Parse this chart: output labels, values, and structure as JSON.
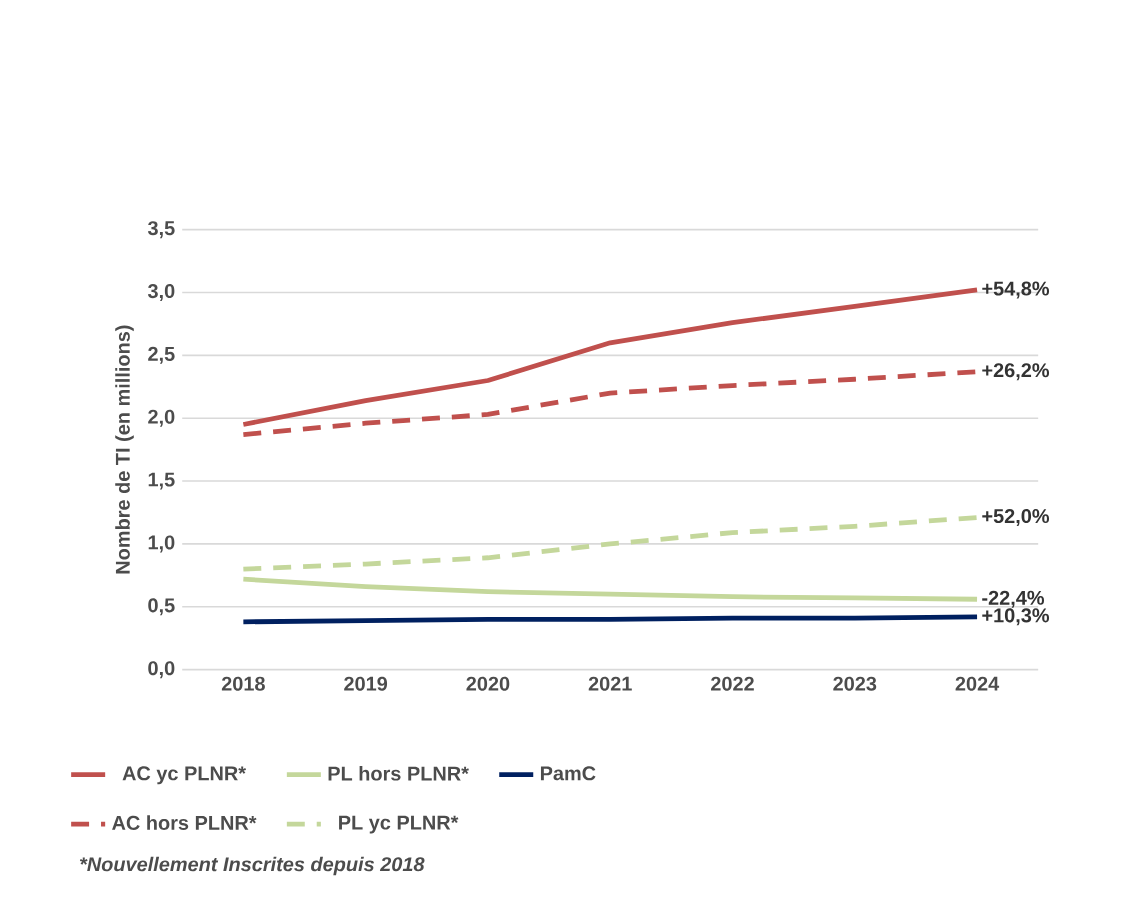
{
  "chart_data": {
    "type": "line",
    "ylabel": "Nombre de TI (en millions)",
    "categories": [
      "2018",
      "2019",
      "2020",
      "2021",
      "2022",
      "2023",
      "2024"
    ],
    "ylim": [
      0,
      3.5
    ],
    "yticks": [
      {
        "value": 0,
        "label": "0,0"
      },
      {
        "value": 0.5,
        "label": "0,5"
      },
      {
        "value": 1,
        "label": "1,0"
      },
      {
        "value": 1.5,
        "label": "1,5"
      },
      {
        "value": 2,
        "label": "2,0"
      },
      {
        "value": 2.5,
        "label": "2,5"
      },
      {
        "value": 3,
        "label": "3,0"
      },
      {
        "value": 3.5,
        "label": "3,5"
      }
    ],
    "grid": "y",
    "legend": "bottom",
    "marker": "none",
    "series": [
      {
        "name": "AC yc PLNR*",
        "color": "#c0504d",
        "line_style": "solid",
        "values": [
          1.95,
          2.14,
          2.3,
          2.6,
          2.76,
          2.89,
          3.02
        ]
      },
      {
        "name": "PL hors PLNR*",
        "color": "#c4d79b",
        "line_style": "solid",
        "values": [
          0.72,
          0.66,
          0.62,
          0.6,
          0.58,
          0.57,
          0.56
        ]
      },
      {
        "name": "PamC",
        "color": "#002060",
        "line_style": "solid",
        "values": [
          0.38,
          0.39,
          0.4,
          0.4,
          0.41,
          0.41,
          0.42
        ]
      },
      {
        "name": "AC hors PLNR*",
        "color": "#c0504d",
        "line_style": "dashed",
        "values": [
          1.87,
          1.96,
          2.03,
          2.2,
          2.26,
          2.31,
          2.37
        ]
      },
      {
        "name": "PL yc PLNR*",
        "color": "#c4d79b",
        "line_style": "dashed",
        "values": [
          0.8,
          0.84,
          0.89,
          1.0,
          1.09,
          1.14,
          1.21
        ]
      }
    ],
    "annotations": [
      {
        "text": "+54,8%",
        "x": "2024",
        "y": 3.02
      },
      {
        "text": "-22,4%",
        "x": "2024",
        "y": 0.56
      },
      {
        "text": "+10,3%",
        "x": "2024",
        "y": 0.42
      },
      {
        "text": "+26,2%",
        "x": "2024",
        "y": 2.37
      },
      {
        "text": "+52,0%",
        "x": "2024",
        "y": 1.21
      },
      "*Nouvellement Inscrites depuis 2018"
    ]
  }
}
